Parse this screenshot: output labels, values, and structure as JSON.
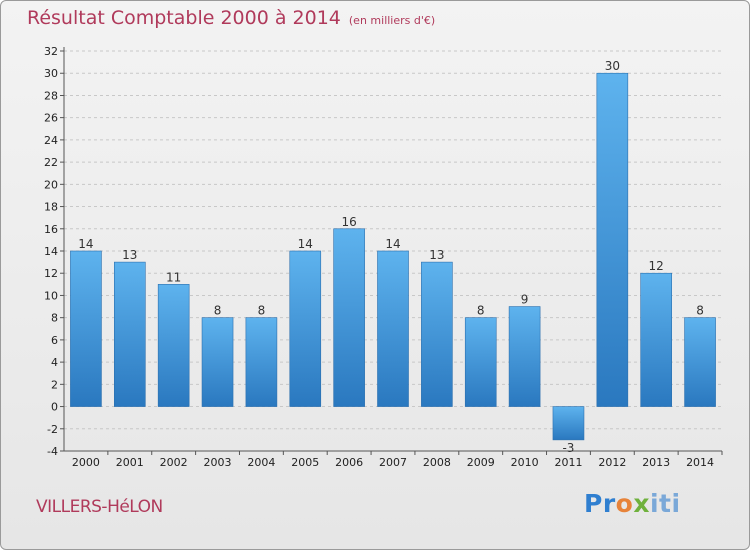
{
  "chart_data": {
    "type": "bar",
    "title": "Résultat Comptable 2000 à 2014",
    "unit": "(en milliers d'€)",
    "categories": [
      "2000",
      "2001",
      "2002",
      "2003",
      "2004",
      "2005",
      "2006",
      "2007",
      "2008",
      "2009",
      "2010",
      "2011",
      "2012",
      "2013",
      "2014"
    ],
    "values": [
      14,
      13,
      11,
      8,
      8,
      14,
      16,
      14,
      13,
      8,
      9,
      -3,
      30,
      12,
      8
    ],
    "ylim": [
      -4,
      32
    ],
    "yticks": [
      -4,
      -2,
      0,
      2,
      4,
      6,
      8,
      10,
      12,
      14,
      16,
      18,
      20,
      22,
      24,
      26,
      28,
      30,
      32
    ],
    "grid": true,
    "xlabel": "",
    "ylabel": ""
  },
  "place": "VILLERS-HéLON",
  "logo": {
    "letters": [
      "Pr",
      "o",
      "x",
      "iti"
    ]
  },
  "colors": {
    "bar_light": "#5eb3ee",
    "bar_dark": "#2a78bf",
    "title": "#b03a5b",
    "grid": "#c8c8c8"
  }
}
